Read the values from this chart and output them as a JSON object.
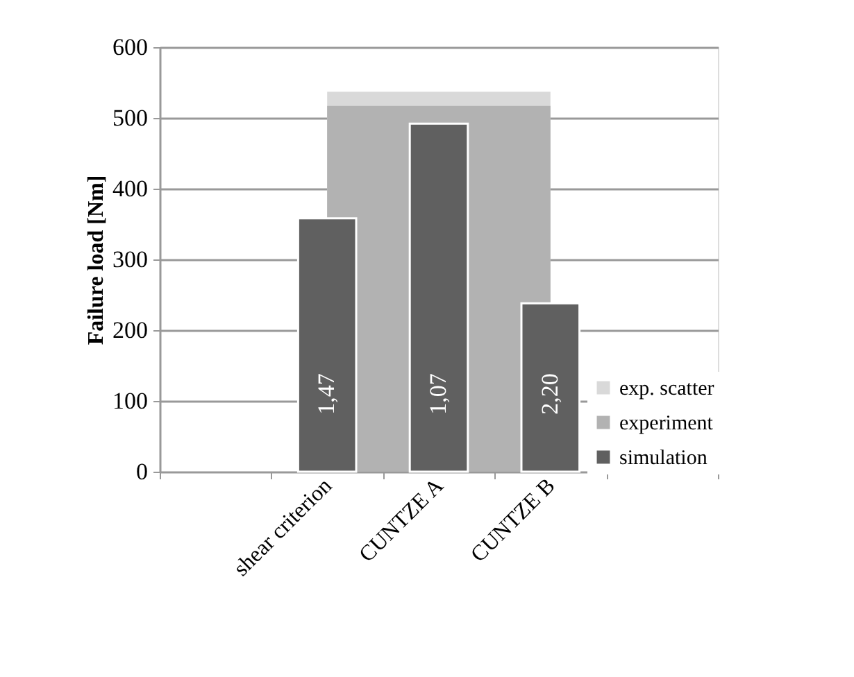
{
  "chart_data": {
    "type": "bar",
    "ylabel": "Failure load [Nm]",
    "categories": [
      null,
      "shear criterion",
      "CUNTZE A",
      "CUNTZE B",
      null
    ],
    "series": [
      {
        "name": "exp. scatter",
        "type": "area",
        "color": "#d9d9d9",
        "values": [
          null,
          537,
          537,
          537,
          null
        ]
      },
      {
        "name": "experiment",
        "type": "area",
        "color": "#b2b2b2",
        "values": [
          null,
          517,
          517,
          517,
          null
        ]
      },
      {
        "name": "simulation",
        "color": "#606060",
        "values": [
          null,
          358,
          492,
          238,
          null
        ]
      }
    ],
    "annotations": [
      "1,47",
      "1,07",
      "2,20"
    ],
    "ylim": [
      0,
      600
    ],
    "yticks": [
      0,
      100,
      200,
      300,
      400,
      500,
      600
    ],
    "grid": "y",
    "legend": "bottom right"
  }
}
